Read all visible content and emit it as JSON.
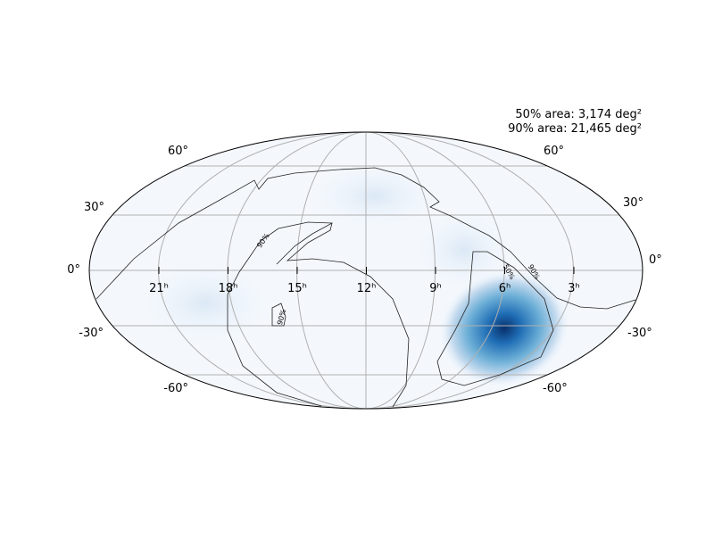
{
  "map": {
    "annotations": [
      "50% area: 3,174 deg²",
      "90% area: 21,465 deg²"
    ],
    "lat_labels_left": [
      "60°",
      "30°",
      "0°",
      "-30°",
      "-60°"
    ],
    "lat_labels_right": [
      "60°",
      "30°",
      "0°",
      "-30°",
      "-60°"
    ],
    "ra_labels": [
      "21ʰ",
      "18ʰ",
      "15ʰ",
      "12ʰ",
      "9ʰ",
      "6ʰ",
      "3ʰ"
    ],
    "contour_labels": [
      "90%",
      "90%",
      "50%",
      "90%"
    ]
  }
}
